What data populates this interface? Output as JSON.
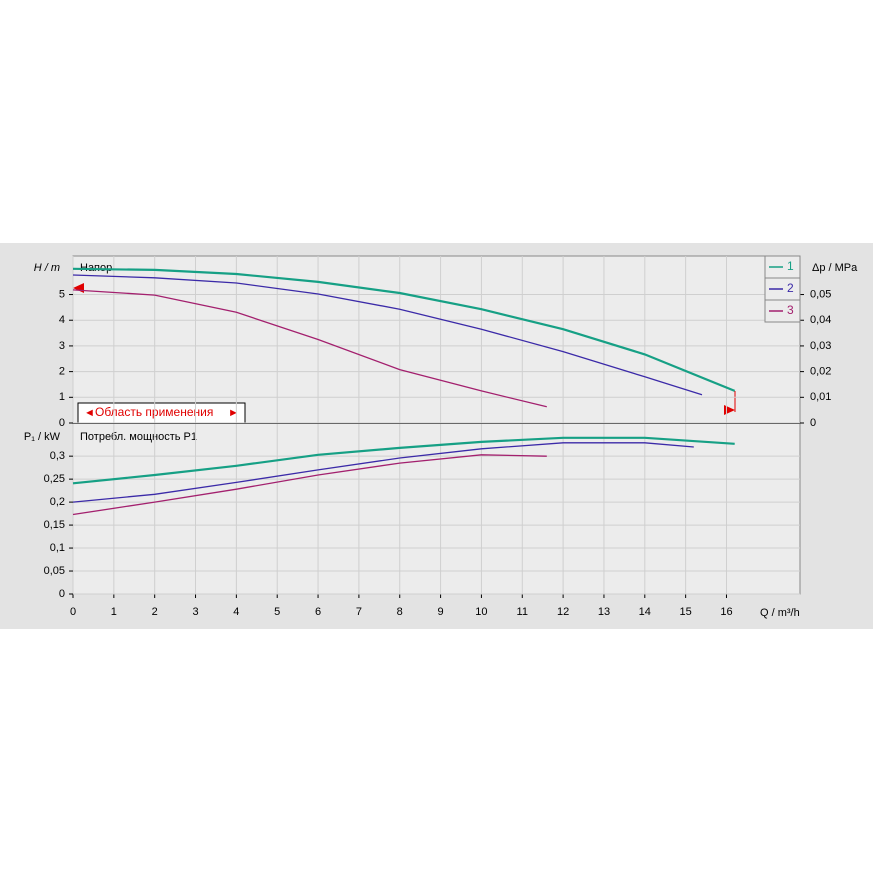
{
  "chart_data": [
    {
      "type": "line",
      "title": "Напор",
      "ylabel": "H / m",
      "y2label": "Δp / MPa",
      "annotation": "Область применения",
      "xlim": [
        0,
        17.8
      ],
      "ylim": [
        0,
        6.5
      ],
      "yticks": [
        0,
        1,
        2,
        3,
        4,
        5
      ],
      "y2lim": [
        0,
        0.065
      ],
      "y2ticks": [
        0,
        {
          "value": 0.01,
          "label": "0,01"
        },
        {
          "value": 0.02,
          "label": "0,02"
        },
        {
          "value": 0.03,
          "label": "0,03"
        },
        {
          "value": 0.04,
          "label": "0,04"
        },
        {
          "value": 0.05,
          "label": "0,05"
        }
      ],
      "grid": true,
      "series": [
        {
          "name": "1",
          "color": "#16a085",
          "x": [
            0,
            2,
            4,
            6,
            8,
            10,
            12,
            14,
            16.2
          ],
          "values": [
            6.0,
            5.96,
            5.8,
            5.49,
            5.06,
            4.43,
            3.65,
            2.67,
            1.25
          ]
        },
        {
          "name": "2",
          "color": "#3b2aa8",
          "x": [
            0,
            2,
            4,
            6,
            8,
            10,
            12,
            14,
            15.4
          ],
          "values": [
            5.76,
            5.65,
            5.45,
            5.02,
            4.43,
            3.65,
            2.78,
            1.8,
            1.1
          ]
        },
        {
          "name": "3",
          "color": "#a3206e",
          "x": [
            0,
            2,
            4,
            6,
            8,
            10,
            11.6
          ],
          "values": [
            5.18,
            4.98,
            4.31,
            3.25,
            2.08,
            1.25,
            0.63
          ]
        }
      ]
    },
    {
      "type": "line",
      "title": "Потребл. мощность P1",
      "ylabel": "P₁ / kW",
      "xlabel": "Q / m³/h",
      "xlim": [
        0,
        17.8
      ],
      "xticks": [
        0,
        1,
        2,
        3,
        4,
        5,
        6,
        7,
        8,
        9,
        10,
        11,
        12,
        13,
        14,
        15,
        16
      ],
      "ylim": [
        0,
        0.37
      ],
      "yticks": [
        0,
        {
          "value": 0.05,
          "label": "0,05"
        },
        {
          "value": 0.1,
          "label": "0,1"
        },
        {
          "value": 0.15,
          "label": "0,15"
        },
        {
          "value": 0.2,
          "label": "0,2"
        },
        {
          "value": 0.25,
          "label": "0,25"
        },
        {
          "value": 0.3,
          "label": "0,3"
        }
      ],
      "grid": true,
      "series": [
        {
          "color": "#16a085",
          "x": [
            0,
            2,
            4,
            6,
            8,
            10,
            12,
            14,
            16.2
          ],
          "values": [
            0.241,
            0.259,
            0.279,
            0.303,
            0.318,
            0.331,
            0.34,
            0.34,
            0.327
          ]
        },
        {
          "color": "#3b2aa8",
          "x": [
            0,
            2,
            4,
            6,
            8,
            10,
            12,
            14,
            15.2
          ],
          "values": [
            0.2,
            0.217,
            0.243,
            0.27,
            0.296,
            0.316,
            0.329,
            0.329,
            0.32
          ]
        },
        {
          "color": "#a3206e",
          "x": [
            0,
            2,
            4,
            6,
            8,
            10,
            11.6
          ],
          "values": [
            0.173,
            0.2,
            0.228,
            0.259,
            0.285,
            0.303,
            0.3
          ]
        }
      ]
    }
  ]
}
